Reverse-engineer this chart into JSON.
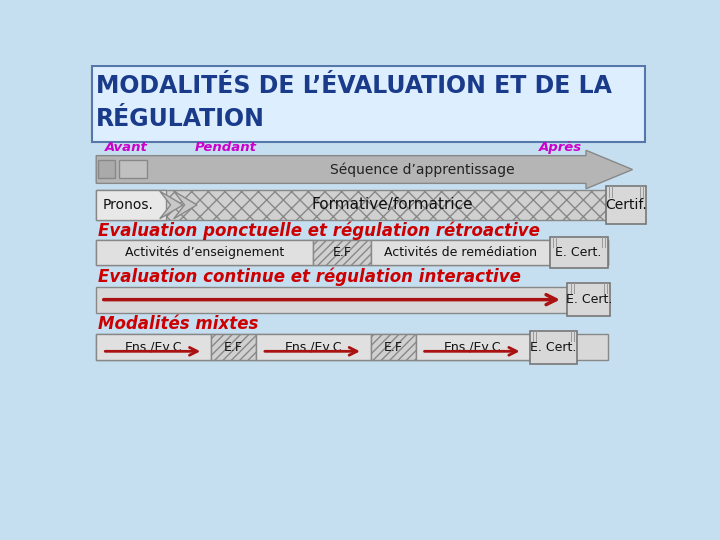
{
  "title_line1": "MODALITÉS DE L’ÉVALUATION ET DE LA",
  "title_line2": "RÉGULATION",
  "title_color": "#1a3a8a",
  "background_color": "#c5dff0",
  "avant_label": "Avant",
  "pendant_label": "Pendant",
  "apres_label": "Après",
  "label_color": "#cc00cc",
  "seq_label": "Séquence d’apprentissage",
  "pronos_label": "Pronos.",
  "formative_label": "Formative/formatrice",
  "certif_label": "Certif.",
  "section1_title": "Evaluation ponctuelle et régulation rétroactive",
  "section1_color": "#cc0000",
  "row1_cells": [
    "Activités d’enseignement",
    "E.F",
    "Activités de remédiation",
    "E. Cert."
  ],
  "section2_title": "Evaluation continue et régulation interactive",
  "section2_color": "#cc0000",
  "row2_ecert": "E. Cert.",
  "section3_title": "Modalités mixtes",
  "section3_color": "#cc0000",
  "row3_cells": [
    "Ens./Ev.C",
    "E.F",
    "Ens./Ev.C",
    "E.F",
    "Ens./Ev.C",
    "E. Cert."
  ]
}
